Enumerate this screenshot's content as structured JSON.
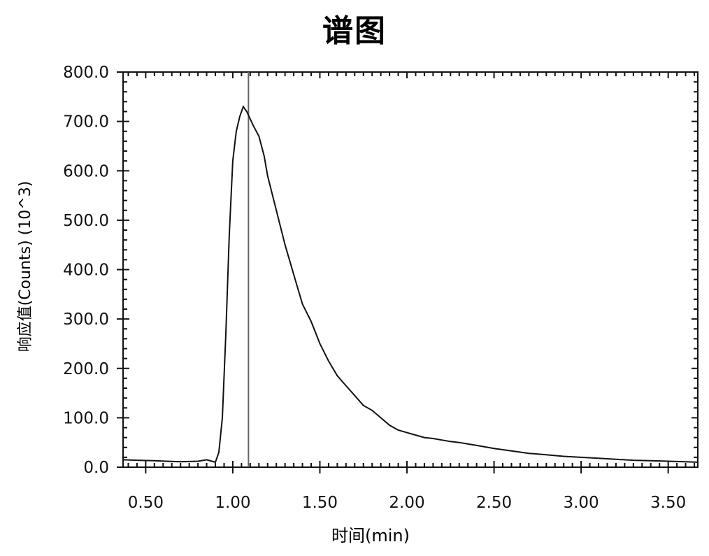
{
  "chart_data": {
    "type": "line",
    "title": "谱图",
    "xlabel": "时间(min)",
    "ylabel": "响应值(Counts) (10^3)",
    "xlim": [
      0.37,
      3.67
    ],
    "ylim": [
      0,
      800
    ],
    "x_ticks": [
      "0.50",
      "1.00",
      "1.50",
      "2.00",
      "2.50",
      "3.00",
      "3.50"
    ],
    "y_ticks": [
      "0.0",
      "100.0",
      "200.0",
      "300.0",
      "400.0",
      "500.0",
      "600.0",
      "700.0",
      "800.0"
    ],
    "marker_line_x": 1.09,
    "grid": false,
    "series": [
      {
        "x": [
          0.37,
          0.45,
          0.55,
          0.62,
          0.7,
          0.8,
          0.85,
          0.88,
          0.9,
          0.92,
          0.94,
          0.96,
          0.98,
          1.0,
          1.02,
          1.04,
          1.06,
          1.08,
          1.1,
          1.12,
          1.15,
          1.18,
          1.2,
          1.25,
          1.3,
          1.35,
          1.4,
          1.45,
          1.5,
          1.55,
          1.6,
          1.65,
          1.7,
          1.75,
          1.8,
          1.85,
          1.9,
          1.95,
          2.0,
          2.05,
          2.1,
          2.15,
          2.2,
          2.25,
          2.3,
          2.4,
          2.5,
          2.6,
          2.7,
          2.8,
          2.9,
          3.0,
          3.1,
          3.2,
          3.3,
          3.4,
          3.5,
          3.6,
          3.67
        ],
        "y": [
          15,
          14,
          13,
          12,
          11,
          12,
          15,
          12,
          10,
          30,
          100,
          270,
          470,
          620,
          680,
          710,
          730,
          720,
          705,
          690,
          670,
          630,
          590,
          520,
          450,
          390,
          330,
          295,
          250,
          215,
          185,
          165,
          145,
          125,
          115,
          100,
          85,
          75,
          70,
          65,
          60,
          58,
          55,
          52,
          50,
          44,
          38,
          33,
          28,
          25,
          22,
          20,
          18,
          16,
          14,
          13,
          12,
          11,
          10
        ]
      }
    ]
  }
}
